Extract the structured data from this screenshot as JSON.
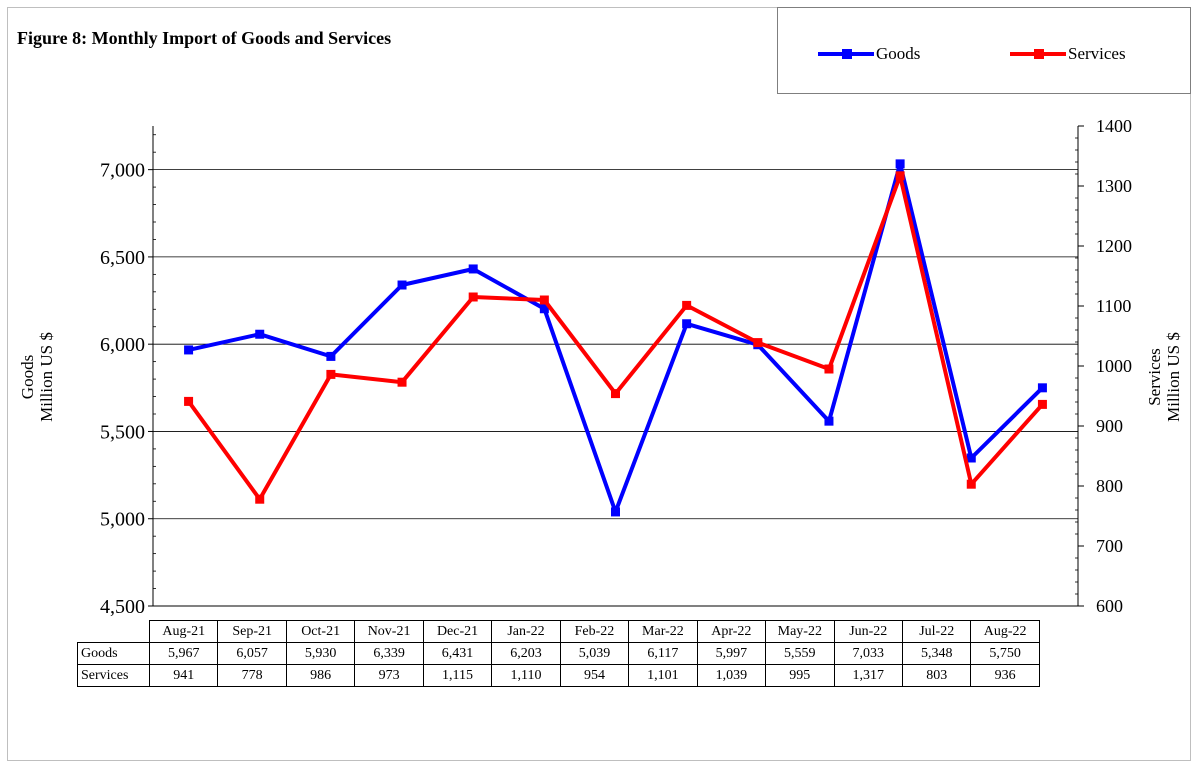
{
  "chart_data": {
    "type": "line",
    "title": "Figure 8: Monthly Import of Goods and Services",
    "categories": [
      "Aug-21",
      "Sep-21",
      "Oct-21",
      "Nov-21",
      "Dec-21",
      "Jan-22",
      "Feb-22",
      "Mar-22",
      "Apr-22",
      "May-22",
      "Jun-22",
      "Jul-22",
      "Aug-22"
    ],
    "series": [
      {
        "name": "Goods",
        "axis": "left",
        "color": "#0000ff",
        "values": [
          5967,
          6057,
          5930,
          6339,
          6431,
          6203,
          5039,
          6117,
          5997,
          5559,
          7033,
          5348,
          5750
        ],
        "labels": [
          "5,967",
          "6,057",
          "5,930",
          "6,339",
          "6,431",
          "6,203",
          "5,039",
          "6,117",
          "5,997",
          "5,559",
          "7,033",
          "5,348",
          "5,750"
        ]
      },
      {
        "name": "Services",
        "axis": "right",
        "color": "#ff0000",
        "values": [
          941,
          778,
          986,
          973,
          1115,
          1110,
          954,
          1101,
          1039,
          995,
          1317,
          803,
          936
        ],
        "labels": [
          "941",
          "778",
          "986",
          "973",
          "1,115",
          "1,110",
          "954",
          "1,101",
          "1,039",
          "995",
          "1,317",
          "803",
          "936"
        ]
      }
    ],
    "left_axis": {
      "title_line1": "Goods",
      "title_line2": "Million US $",
      "range": [
        4500,
        7250
      ],
      "ticks": [
        4500,
        5000,
        5500,
        6000,
        6500,
        7000
      ],
      "tick_labels": [
        "4,500",
        "5,000",
        "5,500",
        "6,000",
        "6,500",
        "7,000"
      ]
    },
    "right_axis": {
      "title_line1": "Services",
      "title_line2": "Million US $",
      "range": [
        600,
        1400
      ],
      "ticks": [
        600,
        700,
        800,
        900,
        1000,
        1100,
        1200,
        1300,
        1400
      ],
      "tick_labels": [
        "600",
        "700",
        "800",
        "900",
        "1000",
        "1100",
        "1200",
        "1300",
        "1400"
      ]
    },
    "grid": true,
    "legend_position": "top-right",
    "data_table": true
  }
}
